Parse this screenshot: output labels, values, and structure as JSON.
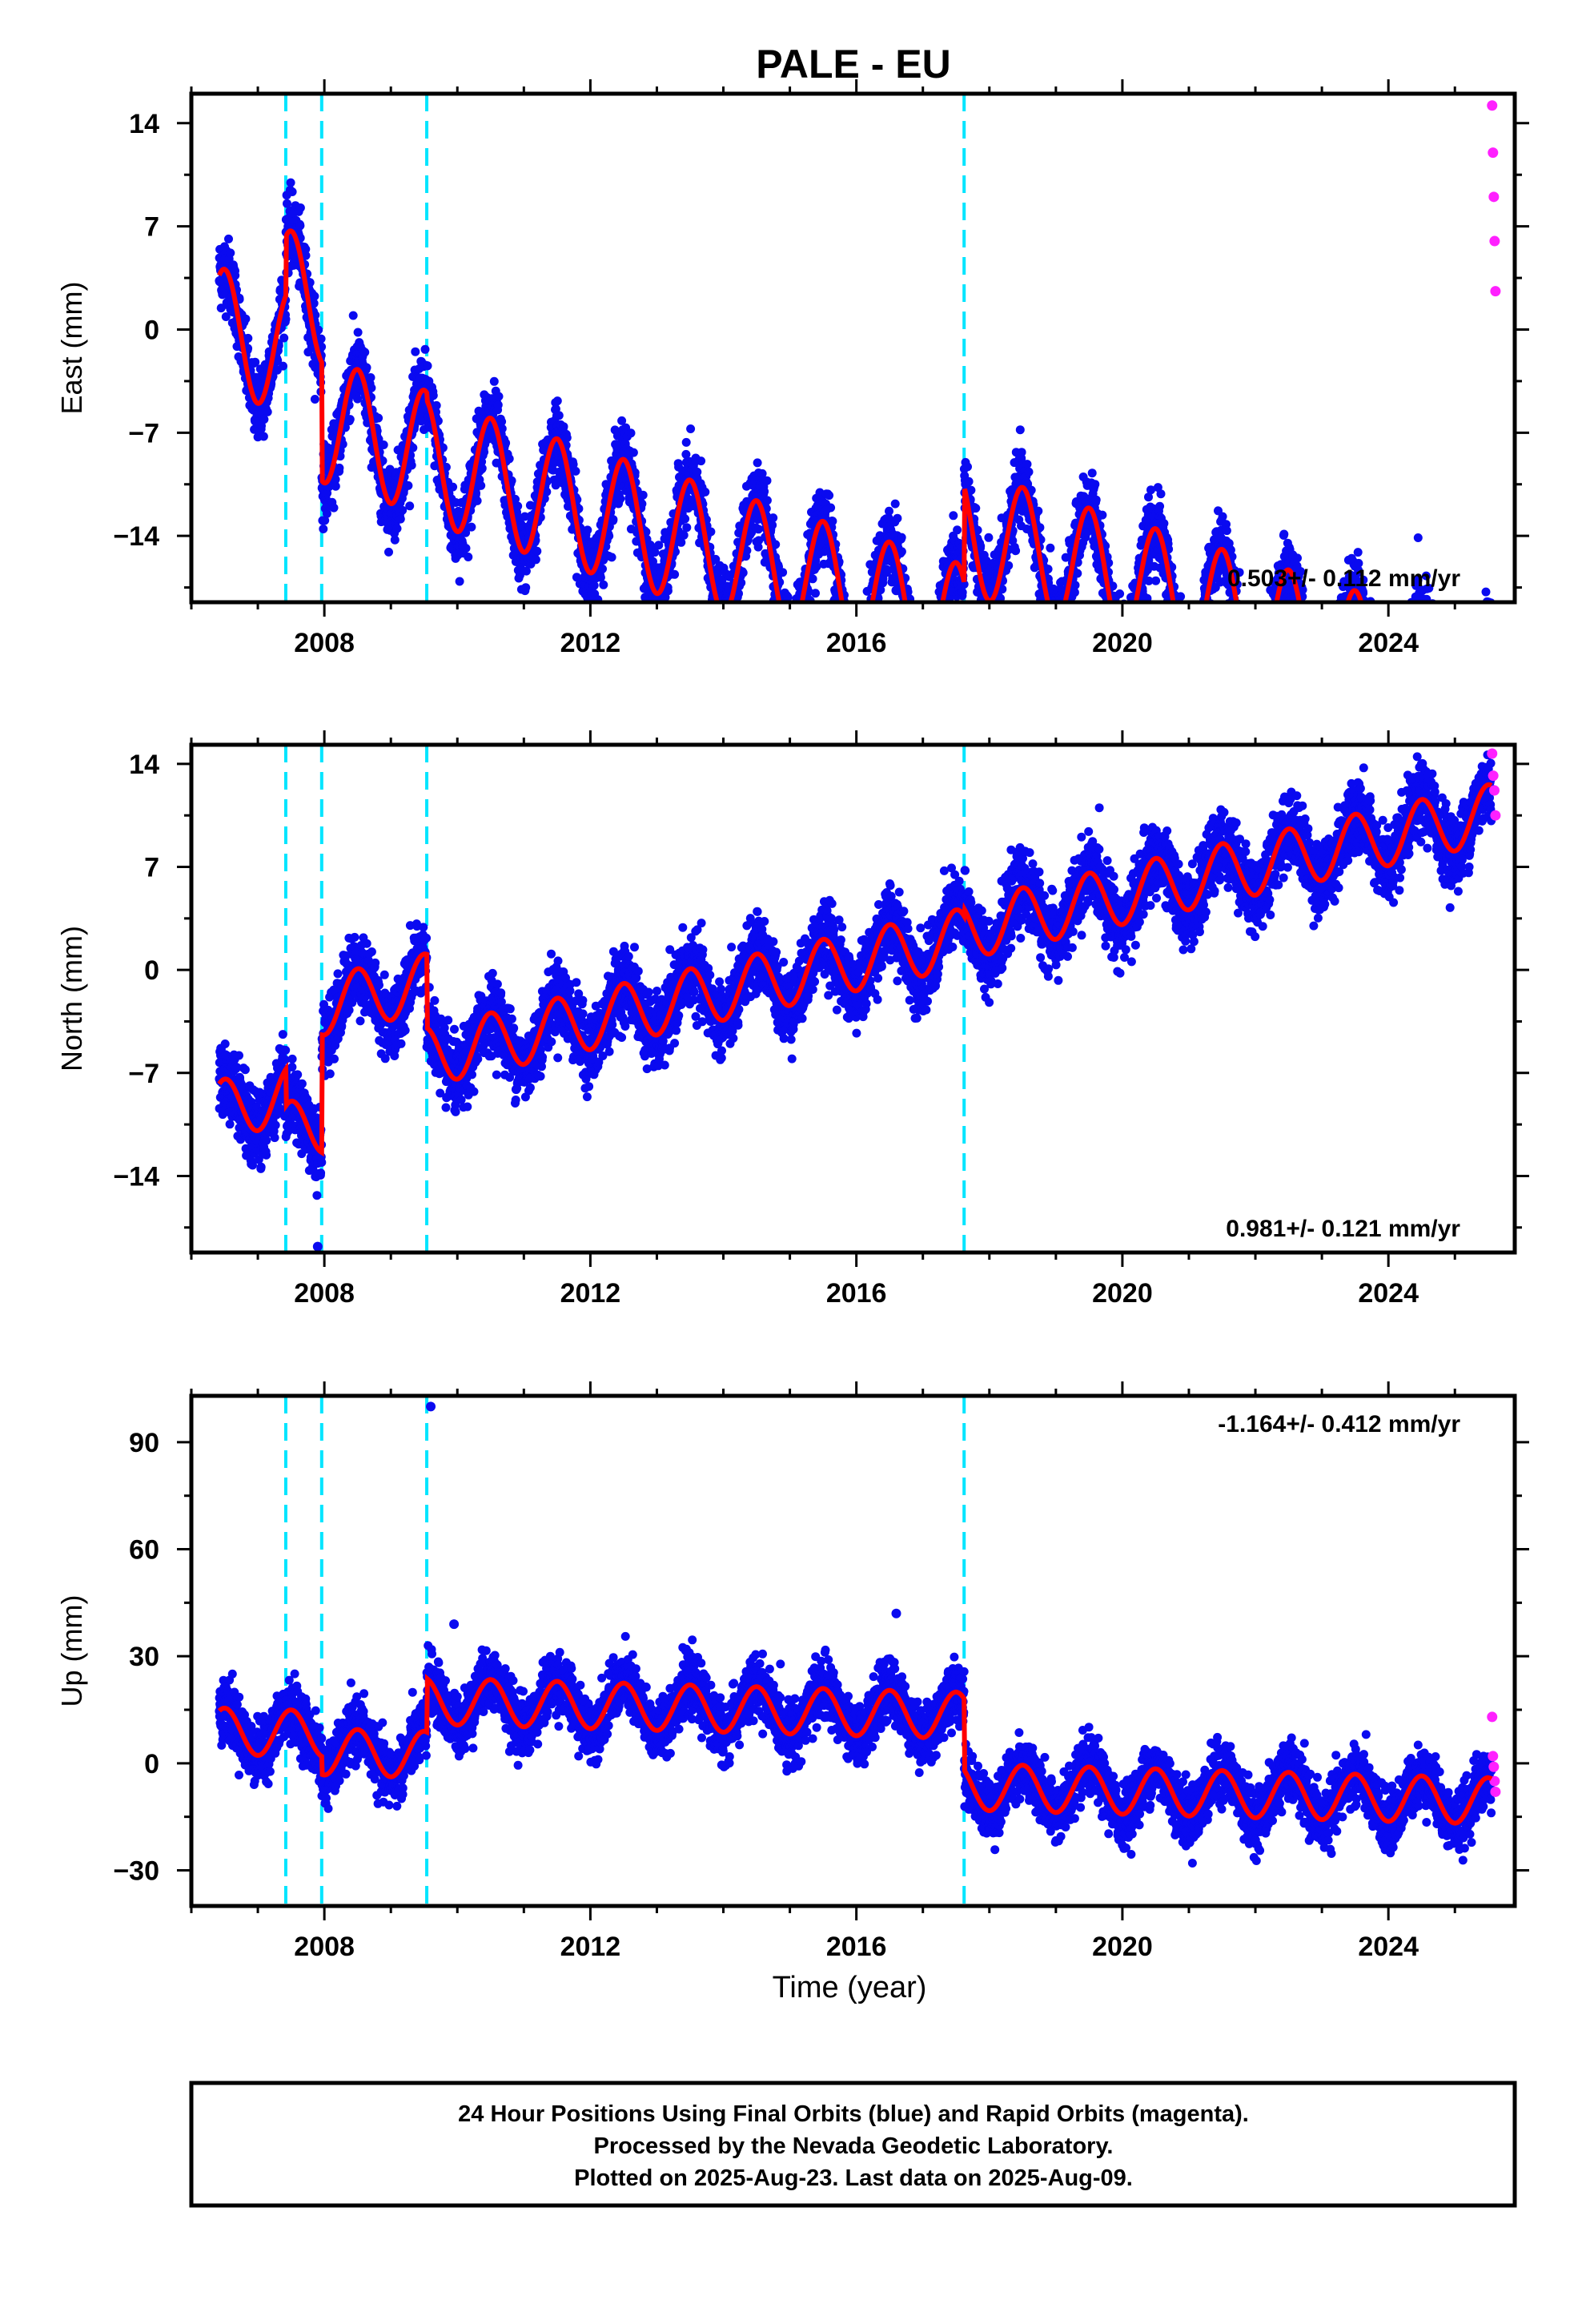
{
  "title": "PALE - EU",
  "chart_data": [
    {
      "type": "scatter",
      "ylabel": "East (mm)",
      "xlim": [
        2006.0,
        2025.9
      ],
      "ylim": [
        -18.5,
        16.0
      ],
      "yticks": [
        -14,
        -7,
        0,
        7,
        14
      ],
      "xticks": [
        2008,
        2012,
        2016,
        2020,
        2024
      ],
      "rate": "0.503+/- 0.112 mm/yr",
      "rate_position": "bottom-right",
      "offsets": [
        2007.42,
        2007.96,
        2009.54,
        2017.62
      ],
      "final_range": [
        2006.42,
        2025.55
      ],
      "rapid_range": [
        2025.56,
        2025.61
      ],
      "model": {
        "offset_at_start": 0.0,
        "trend": -1.4,
        "amplitude": 4.2,
        "steps": [
          4.0,
          -8.0,
          -0.5,
          6.5
        ],
        "scatter": 1.2
      },
      "rapid_values": [
        15.2,
        12.0,
        9.0,
        6.0,
        2.6
      ],
      "outliers": [
        {
          "x": 2016.6,
          "y": -17.7
        }
      ]
    },
    {
      "type": "scatter",
      "ylabel": "North (mm)",
      "xlim": [
        2006.0,
        2025.9
      ],
      "ylim": [
        -19.2,
        15.3
      ],
      "yticks": [
        -14,
        -7,
        0,
        7,
        14
      ],
      "xticks": [
        2008,
        2012,
        2016,
        2020,
        2024
      ],
      "rate": "0.981+/- 0.121 mm/yr",
      "rate_position": "bottom-right",
      "offsets": [
        2007.42,
        2007.96,
        2009.54,
        2017.62
      ],
      "final_range": [
        2006.42,
        2025.55
      ],
      "rapid_range": [
        2025.56,
        2025.61
      ],
      "model": {
        "offset_at_start": -9.5,
        "trend": 1.0,
        "amplitude": 2.0,
        "steps": [
          -2.5,
          8.0,
          -5.0,
          0.5
        ],
        "scatter": 1.2
      },
      "rapid_values": [
        14.7,
        13.2,
        12.2,
        10.5
      ],
      "outliers": [
        {
          "x": 2007.9,
          "y": -18.8
        }
      ]
    },
    {
      "type": "scatter",
      "ylabel": "Up (mm)",
      "xlabel": "Time (year)",
      "xlim": [
        2006.0,
        2025.9
      ],
      "ylim": [
        -40,
        103
      ],
      "yticks": [
        -30,
        0,
        30,
        60,
        90
      ],
      "xticks": [
        2008,
        2012,
        2016,
        2020,
        2024
      ],
      "rate": "-1.164+/- 0.412 mm/yr",
      "rate_position": "top-right",
      "offsets": [
        2007.42,
        2007.96,
        2009.54,
        2017.62
      ],
      "final_range": [
        2006.42,
        2025.55
      ],
      "rapid_range": [
        2025.56,
        2025.61
      ],
      "model": {
        "offset_at_start": 9.0,
        "trend": -0.5,
        "amplitude": 6.5,
        "steps": [
          0.0,
          -5.0,
          15.0,
          -20.0
        ],
        "scatter": 4.0
      },
      "rapid_values": [
        13.0,
        2.0,
        -1.0,
        -5.0,
        -8.0
      ],
      "outliers": [
        {
          "x": 2009.6,
          "y": 100.0
        },
        {
          "x": 2009.95,
          "y": 39.0
        },
        {
          "x": 2016.6,
          "y": 42.0
        }
      ]
    }
  ],
  "footer": {
    "line1": "24 Hour Positions Using Final Orbits (blue) and Rapid Orbits (magenta).",
    "line2": "Processed by the Nevada Geodetic Laboratory.",
    "line3": "Plotted on 2025-Aug-23. Last data on 2025-Aug-09."
  },
  "colors": {
    "final": "#0a0af0",
    "rapid": "#ff20ff",
    "model": "#ff0000",
    "offset_line": "#00e5ff",
    "frame": "#000000"
  }
}
